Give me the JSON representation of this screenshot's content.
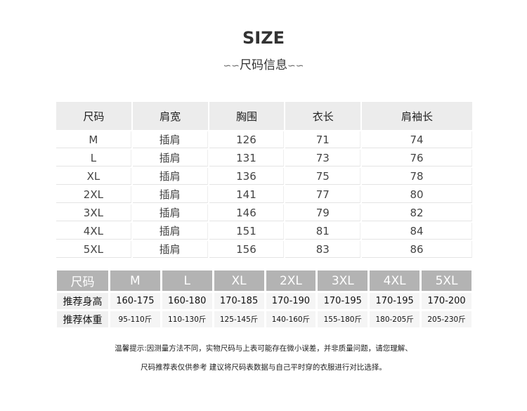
{
  "header": {
    "title": "SIZE",
    "subtitle": "尺码信息",
    "swirl_left": "∽∽",
    "swirl_right": "∽∽"
  },
  "size_table": {
    "columns": [
      "尺码",
      "肩宽",
      "胸围",
      "衣长",
      "肩袖长"
    ],
    "rows": [
      [
        "M",
        "插肩",
        "126",
        "71",
        "74"
      ],
      [
        "L",
        "插肩",
        "131",
        "73",
        "76"
      ],
      [
        "XL",
        "插肩",
        "136",
        "75",
        "78"
      ],
      [
        "2XL",
        "插肩",
        "141",
        "77",
        "80"
      ],
      [
        "3XL",
        "插肩",
        "146",
        "79",
        "82"
      ],
      [
        "4XL",
        "插肩",
        "151",
        "81",
        "84"
      ],
      [
        "5XL",
        "插肩",
        "156",
        "83",
        "86"
      ]
    ]
  },
  "recommend_table": {
    "columns": [
      "尺码",
      "M",
      "L",
      "XL",
      "2XL",
      "3XL",
      "4XL",
      "5XL"
    ],
    "rows": [
      {
        "label": "推荐身高",
        "values": [
          "160-175",
          "160-180",
          "170-185",
          "170-190",
          "170-195",
          "170-195",
          "170-200"
        ]
      },
      {
        "label": "推荐体重",
        "values": [
          "95-110斤",
          "110-130斤",
          "125-145斤",
          "140-160斤",
          "155-180斤",
          "180-205斤",
          "205-230斤"
        ]
      }
    ]
  },
  "notes": [
    "温馨提示:因测量方法不同，实物尺码与上表可能存在微小误差，并非质量问题，请您理解、",
    "尺码推荐表仅供参考  建议将尺码表数据与自己平时穿的衣服进行对比选择。"
  ]
}
